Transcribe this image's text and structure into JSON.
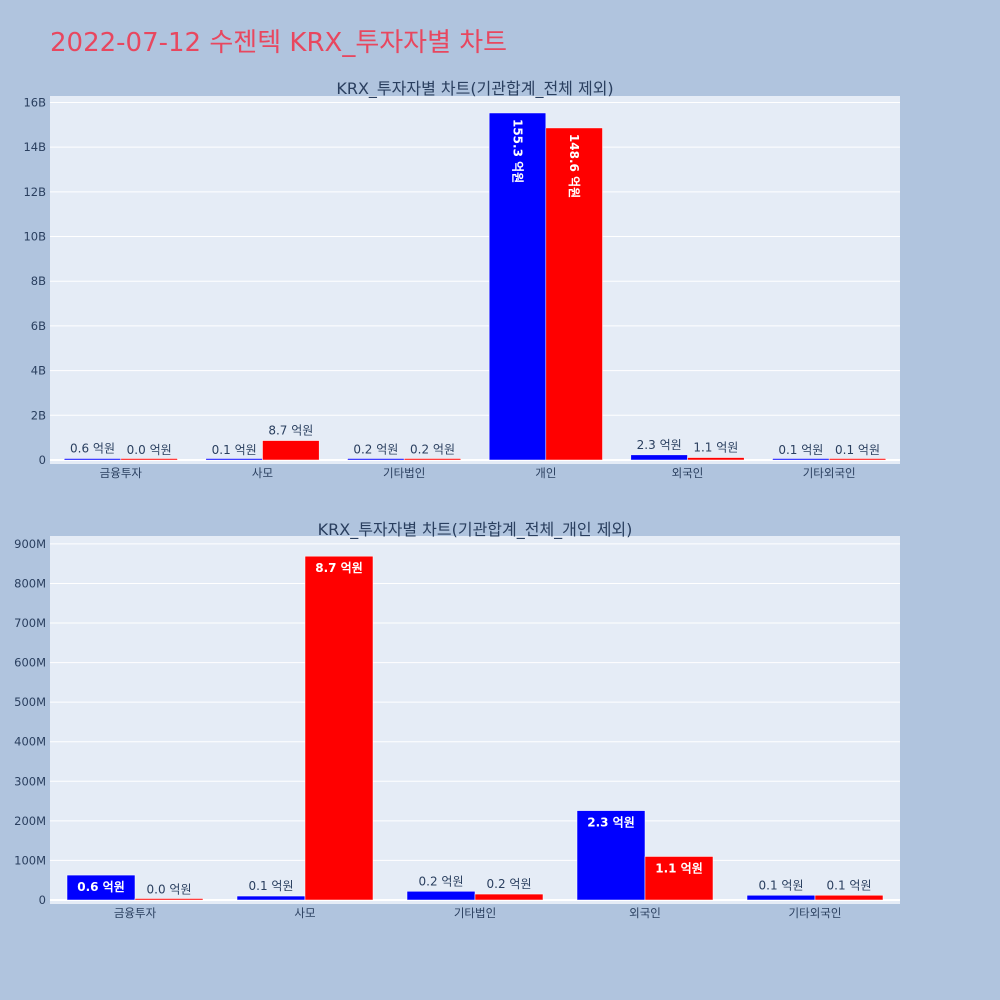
{
  "page_title": "2022-07-12 수젠텍 KRX_투자자별 차트",
  "colors": {
    "buy": "#0000ff",
    "sell": "#ff0000",
    "plot_bg": "#e5ecf6",
    "page_bg": "#b0c4de",
    "title": "#e8475f"
  },
  "chart_data": [
    {
      "type": "bar",
      "title": "KRX_투자자별 차트(기관합계_전체 제외)",
      "categories": [
        "금융투자",
        "사모",
        "기타법인",
        "개인",
        "외국인",
        "기타외국인"
      ],
      "series": [
        {
          "values": [
            60000000,
            10000000,
            20000000,
            15530000000,
            230000000,
            10000000
          ],
          "labels": [
            "0.6 억원",
            "0.1 억원",
            "0.2 억원",
            "155.3 억원",
            "2.3 억원",
            "0.1 억원"
          ]
        },
        {
          "values": [
            0,
            870000000,
            20000000,
            14860000000,
            110000000,
            10000000
          ],
          "labels": [
            "0.0 억원",
            "8.7 억원",
            "0.2 억원",
            "148.6 억원",
            "1.1 억원",
            "0.1 억원"
          ]
        }
      ],
      "ylim": [
        0,
        16200000000
      ],
      "yticks": [
        0,
        2000000000,
        4000000000,
        6000000000,
        8000000000,
        10000000000,
        12000000000,
        14000000000,
        16000000000
      ],
      "ytick_labels": [
        "0",
        "2B",
        "4B",
        "6B",
        "8B",
        "10B",
        "12B",
        "14B",
        "16B"
      ],
      "grid": true
    },
    {
      "type": "bar",
      "title": "KRX_투자자별 차트(기관합계_전체_개인 제외)",
      "categories": [
        "금융투자",
        "사모",
        "기타법인",
        "외국인",
        "기타외국인"
      ],
      "series": [
        {
          "values": [
            63000000,
            10000000,
            22000000,
            226000000,
            12000000
          ],
          "labels": [
            "0.6 억원",
            "0.1 억원",
            "0.2 억원",
            "2.3 억원",
            "0.1 억원"
          ]
        },
        {
          "values": [
            1000000,
            869000000,
            15000000,
            110000000,
            12000000
          ],
          "labels": [
            "0.0 억원",
            "8.7 억원",
            "0.2 억원",
            "1.1 억원",
            "0.1 억원"
          ]
        }
      ],
      "ylim": [
        0,
        915000000
      ],
      "yticks": [
        0,
        100000000,
        200000000,
        300000000,
        400000000,
        500000000,
        600000000,
        700000000,
        800000000,
        900000000
      ],
      "ytick_labels": [
        "0",
        "100M",
        "200M",
        "300M",
        "400M",
        "500M",
        "600M",
        "700M",
        "800M",
        "900M"
      ],
      "grid": true
    }
  ]
}
